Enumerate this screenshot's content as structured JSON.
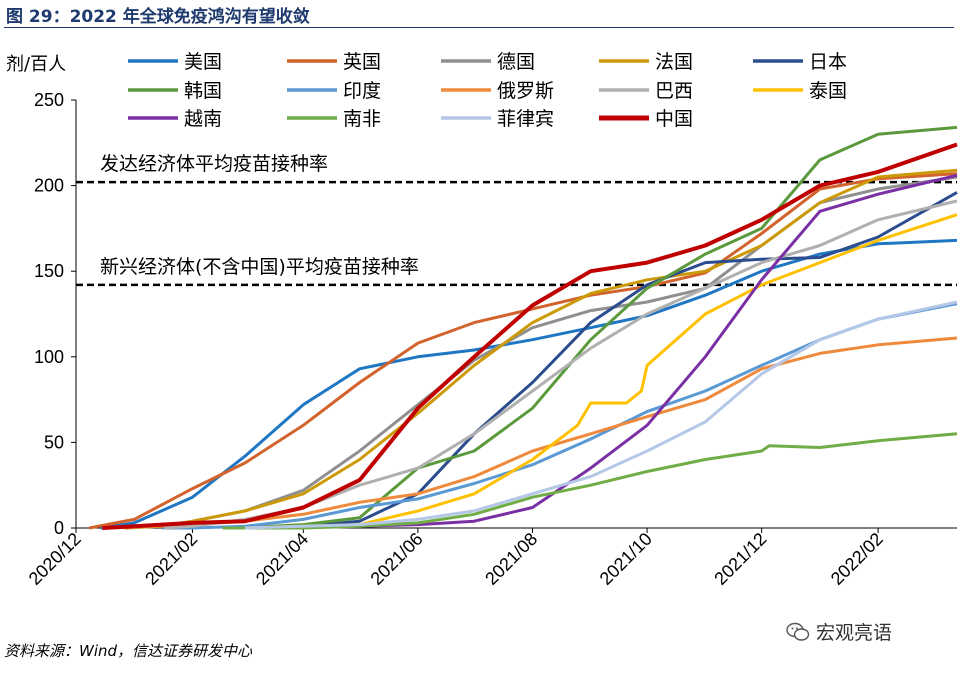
{
  "figure": {
    "title": "图 29：2022 年全球免疫鸿沟有望收敛",
    "source": "资料来源：Wind，信达证券研发中心",
    "watermark": "宏观亮语"
  },
  "chart_data": {
    "type": "line",
    "title": "",
    "ylabel": "剂/百人",
    "ylim": [
      0,
      250
    ],
    "yticks": [
      0,
      50,
      100,
      150,
      200,
      250
    ],
    "xlim": [
      "2020-12-01",
      "2022-03-15"
    ],
    "xtick_labels": [
      "2020/12",
      "2021/02",
      "2021/04",
      "2021/06",
      "2021/08",
      "2021/10",
      "2021/12",
      "2022/02"
    ],
    "xtick_dates": [
      "2020-12-01",
      "2021-02-01",
      "2021-04-01",
      "2021-06-01",
      "2021-08-01",
      "2021-10-01",
      "2021-12-01",
      "2022-02-01"
    ],
    "grid": false,
    "legend_position": "top",
    "reference_lines": [
      {
        "label": "发达经济体平均疫苗接种率",
        "y": 202
      },
      {
        "label": "新兴经济体(不含中国)平均疫苗接种率",
        "y": 142
      }
    ],
    "series": [
      {
        "name": "美国",
        "color": "#1f77c4",
        "dates": [
          "2020-12-14",
          "2021-01-01",
          "2021-02-01",
          "2021-03-01",
          "2021-04-01",
          "2021-05-01",
          "2021-06-01",
          "2021-07-01",
          "2021-08-01",
          "2021-09-01",
          "2021-10-01",
          "2021-11-01",
          "2021-12-01",
          "2022-01-01",
          "2022-02-01",
          "2022-03-15"
        ],
        "values": [
          0,
          3,
          18,
          42,
          72,
          93,
          100,
          104,
          110,
          117,
          124,
          136,
          150,
          160,
          166,
          168
        ]
      },
      {
        "name": "英国",
        "color": "#d2632c",
        "dates": [
          "2020-12-08",
          "2021-01-01",
          "2021-02-01",
          "2021-03-01",
          "2021-04-01",
          "2021-05-01",
          "2021-06-01",
          "2021-07-01",
          "2021-08-01",
          "2021-09-01",
          "2021-10-01",
          "2021-11-01",
          "2021-12-01",
          "2022-01-01",
          "2022-02-01",
          "2022-03-15"
        ],
        "values": [
          0,
          5,
          23,
          38,
          60,
          85,
          108,
          120,
          128,
          136,
          141,
          149,
          172,
          198,
          204,
          207
        ]
      },
      {
        "name": "德国",
        "color": "#8f8f8f",
        "dates": [
          "2020-12-27",
          "2021-01-15",
          "2021-02-01",
          "2021-03-01",
          "2021-04-01",
          "2021-05-01",
          "2021-06-01",
          "2021-07-01",
          "2021-08-01",
          "2021-09-01",
          "2021-10-01",
          "2021-11-01",
          "2021-12-01",
          "2022-01-01",
          "2022-02-01",
          "2022-03-15"
        ],
        "values": [
          0,
          1,
          4,
          10,
          22,
          45,
          72,
          98,
          117,
          127,
          132,
          140,
          165,
          190,
          198,
          205
        ]
      },
      {
        "name": "法国",
        "color": "#cc9a06",
        "dates": [
          "2020-12-27",
          "2021-01-15",
          "2021-02-01",
          "2021-03-01",
          "2021-04-01",
          "2021-05-01",
          "2021-06-01",
          "2021-07-01",
          "2021-08-01",
          "2021-09-01",
          "2021-10-01",
          "2021-11-01",
          "2021-12-01",
          "2022-01-01",
          "2022-02-01",
          "2022-03-15"
        ],
        "values": [
          0,
          1,
          4,
          10,
          20,
          40,
          67,
          95,
          120,
          137,
          145,
          150,
          165,
          190,
          205,
          209
        ]
      },
      {
        "name": "日本",
        "color": "#2b4d8f",
        "dates": [
          "2021-02-17",
          "2021-03-01",
          "2021-04-01",
          "2021-05-01",
          "2021-06-01",
          "2021-07-01",
          "2021-08-01",
          "2021-09-01",
          "2021-10-01",
          "2021-11-01",
          "2021-12-01",
          "2022-01-01",
          "2022-02-01",
          "2022-03-15"
        ],
        "values": [
          0,
          0,
          1,
          4,
          20,
          55,
          85,
          120,
          142,
          155,
          157,
          158,
          170,
          196
        ]
      },
      {
        "name": "韩国",
        "color": "#5a9a3c",
        "dates": [
          "2021-02-26",
          "2021-03-15",
          "2021-04-01",
          "2021-05-01",
          "2021-06-01",
          "2021-07-01",
          "2021-08-01",
          "2021-09-01",
          "2021-10-01",
          "2021-11-01",
          "2021-12-01",
          "2022-01-01",
          "2022-02-01",
          "2022-03-15"
        ],
        "values": [
          0,
          1,
          2,
          6,
          35,
          45,
          70,
          110,
          140,
          160,
          175,
          215,
          230,
          234
        ]
      },
      {
        "name": "印度",
        "color": "#5a99d4",
        "dates": [
          "2021-01-16",
          "2021-02-01",
          "2021-03-01",
          "2021-04-01",
          "2021-05-01",
          "2021-06-01",
          "2021-07-01",
          "2021-08-01",
          "2021-09-01",
          "2021-10-01",
          "2021-11-01",
          "2021-12-01",
          "2022-01-01",
          "2022-02-01",
          "2022-03-15"
        ],
        "values": [
          0,
          0,
          1,
          5,
          12,
          17,
          26,
          37,
          52,
          68,
          80,
          95,
          110,
          122,
          131
        ]
      },
      {
        "name": "俄罗斯",
        "color": "#ef8a3c",
        "dates": [
          "2020-12-15",
          "2021-01-15",
          "2021-02-01",
          "2021-03-01",
          "2021-04-01",
          "2021-05-01",
          "2021-06-01",
          "2021-07-01",
          "2021-08-01",
          "2021-09-01",
          "2021-10-01",
          "2021-11-01",
          "2021-12-01",
          "2022-01-01",
          "2022-02-01",
          "2022-03-15"
        ],
        "values": [
          0,
          1,
          2,
          4,
          8,
          15,
          20,
          30,
          45,
          55,
          65,
          75,
          93,
          102,
          107,
          111
        ]
      },
      {
        "name": "巴西",
        "color": "#b0b0b0",
        "dates": [
          "2021-01-17",
          "2021-02-01",
          "2021-03-01",
          "2021-04-01",
          "2021-05-01",
          "2021-06-01",
          "2021-07-01",
          "2021-08-01",
          "2021-09-01",
          "2021-10-01",
          "2021-11-01",
          "2021-12-01",
          "2022-01-01",
          "2022-02-01",
          "2022-03-15"
        ],
        "values": [
          0,
          1,
          5,
          12,
          25,
          35,
          55,
          80,
          105,
          125,
          140,
          155,
          165,
          180,
          191
        ]
      },
      {
        "name": "泰国",
        "color": "#ffc000",
        "dates": [
          "2021-02-28",
          "2021-04-01",
          "2021-05-01",
          "2021-06-01",
          "2021-07-01",
          "2021-08-01",
          "2021-08-25",
          "2021-09-01",
          "2021-09-10",
          "2021-09-20",
          "2021-09-28",
          "2021-10-01",
          "2021-11-01",
          "2021-12-01",
          "2022-01-01",
          "2022-02-01",
          "2022-03-15"
        ],
        "values": [
          0,
          1,
          2,
          10,
          20,
          40,
          60,
          73,
          73,
          73,
          80,
          95,
          125,
          142,
          155,
          168,
          183
        ]
      },
      {
        "name": "越南",
        "color": "#7b2fa5",
        "dates": [
          "2021-03-08",
          "2021-05-01",
          "2021-06-01",
          "2021-07-01",
          "2021-08-01",
          "2021-09-01",
          "2021-10-01",
          "2021-11-01",
          "2021-12-01",
          "2022-01-01",
          "2022-02-01",
          "2022-03-15"
        ],
        "values": [
          0,
          1,
          2,
          4,
          12,
          35,
          60,
          100,
          145,
          185,
          195,
          206
        ]
      },
      {
        "name": "南非",
        "color": "#70ad47",
        "dates": [
          "2021-02-17",
          "2021-04-01",
          "2021-05-01",
          "2021-06-01",
          "2021-07-01",
          "2021-08-01",
          "2021-09-01",
          "2021-10-01",
          "2021-11-01",
          "2021-12-01",
          "2021-12-05",
          "2022-01-01",
          "2022-02-01",
          "2022-03-15"
        ],
        "values": [
          0,
          0,
          1,
          3,
          8,
          18,
          25,
          33,
          40,
          45,
          48,
          47,
          51,
          55
        ]
      },
      {
        "name": "菲律宾",
        "color": "#b4c7e7",
        "dates": [
          "2021-03-01",
          "2021-04-01",
          "2021-05-01",
          "2021-06-01",
          "2021-07-01",
          "2021-08-01",
          "2021-09-01",
          "2021-10-01",
          "2021-11-01",
          "2021-12-01",
          "2022-01-01",
          "2022-02-01",
          "2022-03-15"
        ],
        "values": [
          0,
          1,
          2,
          5,
          10,
          20,
          30,
          45,
          62,
          90,
          110,
          122,
          132
        ]
      },
      {
        "name": "中国",
        "color": "#c00000",
        "dates": [
          "2020-12-15",
          "2021-01-01",
          "2021-02-01",
          "2021-03-01",
          "2021-04-01",
          "2021-05-01",
          "2021-06-01",
          "2021-07-01",
          "2021-08-01",
          "2021-09-01",
          "2021-10-01",
          "2021-11-01",
          "2021-12-01",
          "2022-01-01",
          "2022-02-01",
          "2022-03-15"
        ],
        "values": [
          0,
          1,
          3,
          4,
          12,
          28,
          70,
          100,
          130,
          150,
          155,
          165,
          180,
          200,
          208,
          224
        ]
      }
    ]
  }
}
